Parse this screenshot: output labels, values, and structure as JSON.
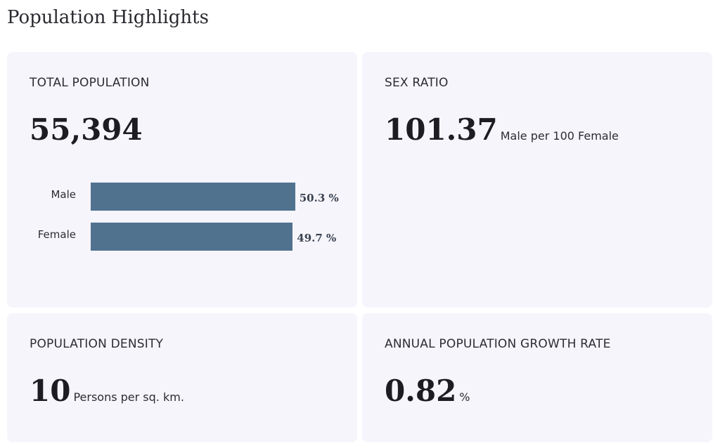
{
  "page": {
    "title": "Population Highlights"
  },
  "cards": {
    "total_population": {
      "label": "TOTAL POPULATION",
      "value": "55,394",
      "bars": [
        {
          "label": "Male",
          "value_text": "50.3 %",
          "percent": 50.3
        },
        {
          "label": "Female",
          "value_text": "49.7 %",
          "percent": 49.7
        }
      ],
      "bar_color": "#50728f"
    },
    "sex_ratio": {
      "label": "SEX RATIO",
      "value": "101.37",
      "unit": "Male per 100 Female"
    },
    "population_density": {
      "label": "POPULATION DENSITY",
      "value": "10",
      "unit": "Persons per sq. km."
    },
    "growth_rate": {
      "label": "ANNUAL POPULATION GROWTH RATE",
      "value": "0.82",
      "unit": "%"
    }
  },
  "colors": {
    "card_background": "#f6f5fc",
    "text": "#1e1e24"
  }
}
